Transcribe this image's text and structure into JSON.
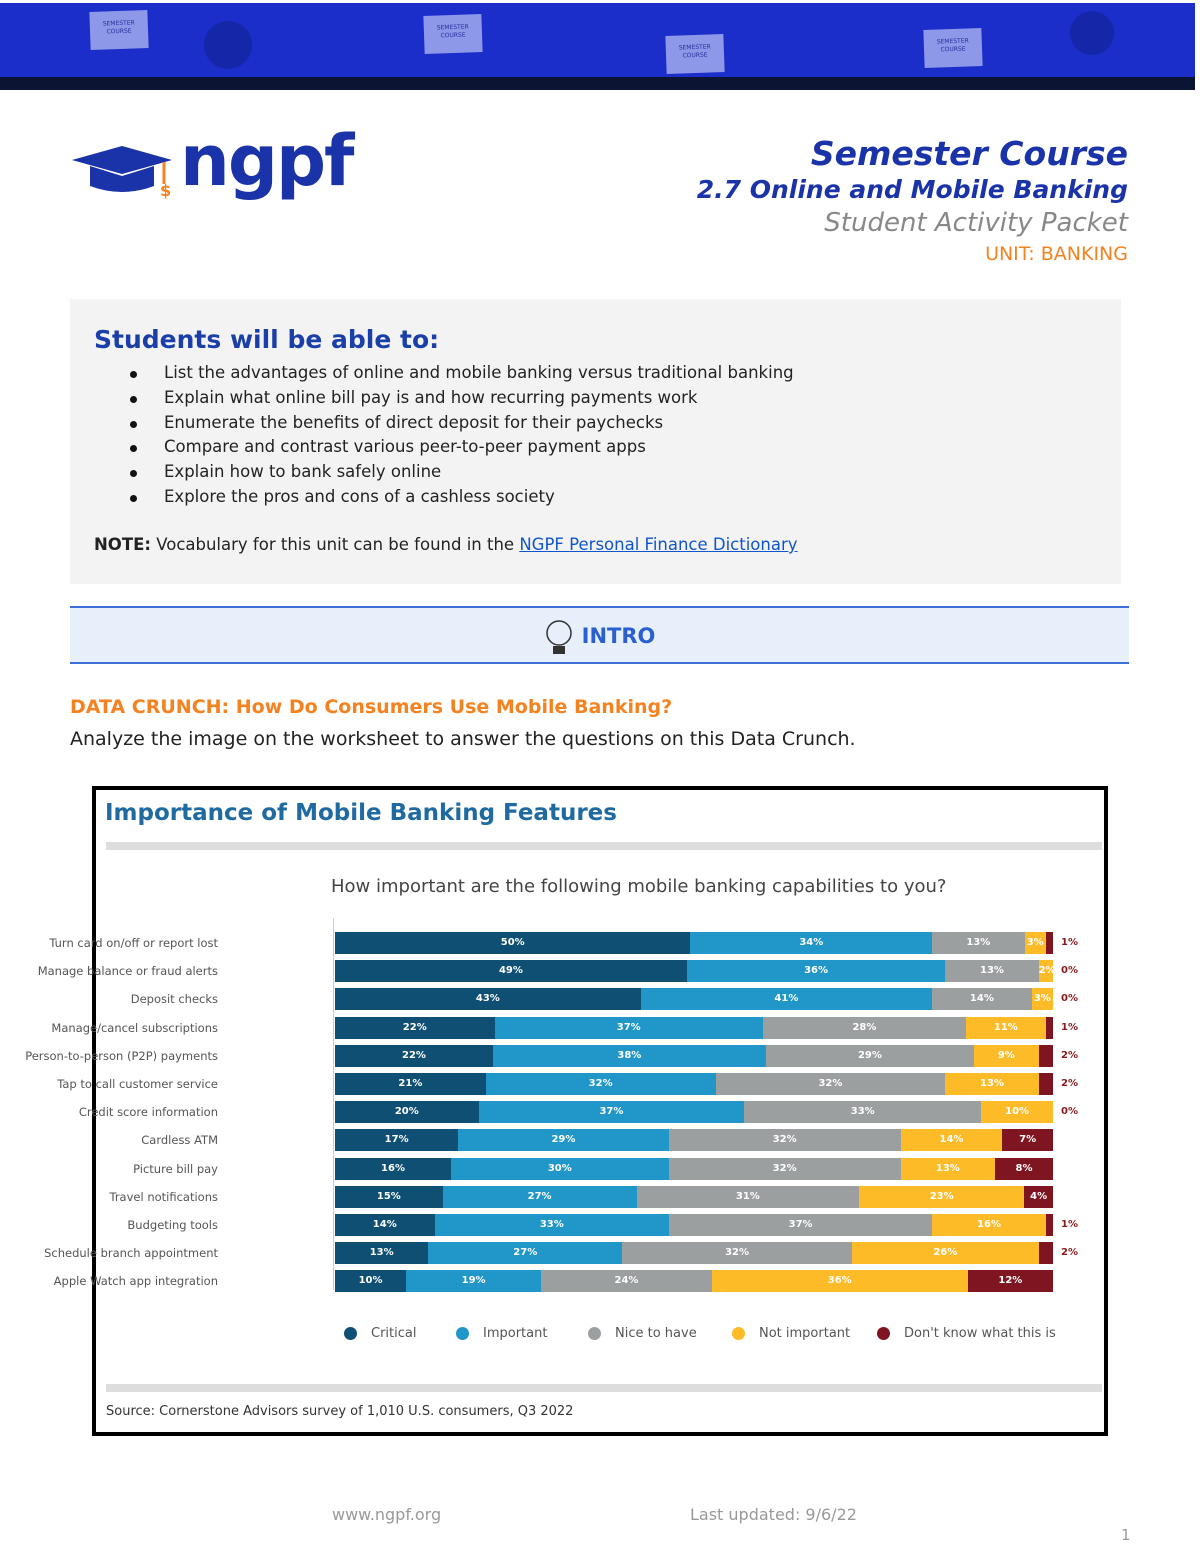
{
  "banner": {
    "notes": [
      "SEMESTER COURSE",
      "SEMESTER COURSE",
      "SEMESTER COURSE",
      "SEMESTER COURSE"
    ]
  },
  "logo": {
    "text": "ngpf"
  },
  "header": {
    "course": "Semester Course",
    "lesson": "2.7 Online and Mobile Banking",
    "packet": "Student Activity Packet",
    "unit": "UNIT: BANKING"
  },
  "objectives": {
    "title": "Students will be able to:",
    "items": [
      "List the advantages of online and mobile banking versus traditional banking",
      "Explain what online bill pay is and how recurring payments work",
      "Enumerate the benefits of direct deposit for their paychecks",
      "Compare and contrast various peer-to-peer payment apps",
      "Explain how to bank safely online",
      "Explore the pros and cons of a cashless society"
    ],
    "note_label": "NOTE:",
    "note_text": " Vocabulary for this unit can be found in the ",
    "note_link": "NGPF Personal Finance Dictionary"
  },
  "intro": {
    "label": "INTRO",
    "icon": "lightbulb-icon"
  },
  "data_crunch": {
    "title": "DATA CRUNCH: How Do Consumers Use Mobile Banking?",
    "instructions": "Analyze the image on the worksheet to answer the questions on this Data Crunch."
  },
  "chart_data": {
    "type": "bar",
    "orientation": "horizontal",
    "stacked": true,
    "title": "Importance of Mobile Banking Features",
    "subtitle": "How important are the following mobile banking capabilities to you?",
    "source": "Source: Cornerstone Advisors survey of 1,010 U.S. consumers, Q3 2022",
    "legend_placement": "bottom",
    "categories": [
      "Turn card on/off or report lost",
      "Manage balance or fraud alerts",
      "Deposit checks",
      "Manage/cancel subscriptions",
      "Person-to-person (P2P) payments",
      "Tap to call customer service",
      "Credit score information",
      "Cardless ATM",
      "Picture bill pay",
      "Travel notifications",
      "Budgeting tools",
      "Schedule branch appointment",
      "Apple Watch app integration"
    ],
    "series": [
      {
        "name": "Critical",
        "color": "#0f4f74",
        "values": [
          50,
          49,
          43,
          22,
          22,
          21,
          20,
          17,
          16,
          15,
          14,
          13,
          10
        ]
      },
      {
        "name": "Important",
        "color": "#2196c8",
        "values": [
          34,
          36,
          41,
          37,
          38,
          32,
          37,
          29,
          30,
          27,
          33,
          27,
          19
        ]
      },
      {
        "name": "Nice to have",
        "color": "#9c9fa0",
        "values": [
          13,
          13,
          14,
          28,
          29,
          32,
          33,
          32,
          32,
          31,
          37,
          32,
          24
        ]
      },
      {
        "name": "Not important",
        "color": "#fdbb27",
        "values": [
          3,
          2,
          3,
          11,
          9,
          13,
          10,
          14,
          13,
          23,
          16,
          26,
          36
        ]
      },
      {
        "name": "Don't know what this is",
        "color": "#7f1520",
        "values": [
          1,
          0,
          0,
          1,
          2,
          2,
          0,
          7,
          8,
          4,
          1,
          2,
          12
        ]
      }
    ],
    "unit": "%"
  },
  "footer": {
    "url": "www.ngpf.org",
    "updated": "Last updated: 9/6/22",
    "page": "1"
  }
}
